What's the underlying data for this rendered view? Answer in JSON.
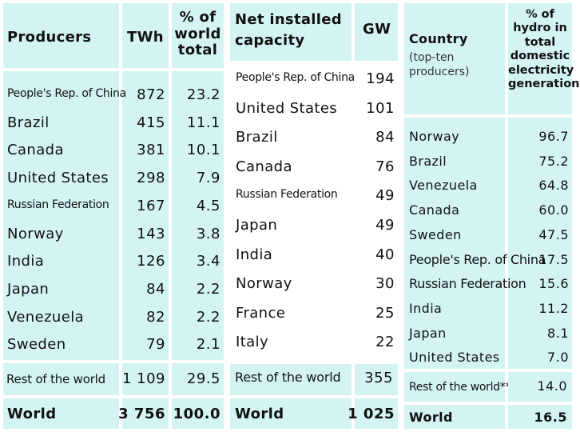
{
  "producers_table": {
    "headers": {
      "producers": "Producers",
      "twh": "TWh",
      "pct": "% of world total"
    },
    "rows": [
      {
        "name": "People's Rep. of China",
        "twh": "872",
        "pct": "23.2"
      },
      {
        "name": "Brazil",
        "twh": "415",
        "pct": "11.1"
      },
      {
        "name": "Canada",
        "twh": "381",
        "pct": "10.1"
      },
      {
        "name": "United States",
        "twh": "298",
        "pct": "7.9"
      },
      {
        "name": "Russian Federation",
        "twh": "167",
        "pct": "4.5"
      },
      {
        "name": "Norway",
        "twh": "143",
        "pct": "3.8"
      },
      {
        "name": "India",
        "twh": "126",
        "pct": "3.4"
      },
      {
        "name": "Japan",
        "twh": "84",
        "pct": "2.2"
      },
      {
        "name": "Venezuela",
        "twh": "82",
        "pct": "2.2"
      },
      {
        "name": "Sweden",
        "twh": "79",
        "pct": "2.1"
      }
    ],
    "rest": {
      "name": "Rest of the world",
      "twh": "1 109",
      "pct": "29.5"
    },
    "world": {
      "name": "World",
      "twh": "3 756",
      "pct": "100.0"
    }
  },
  "capacity_table": {
    "headers": {
      "capacity": "Net installed capacity",
      "gw": "GW"
    },
    "rows": [
      {
        "name": "People's Rep. of China",
        "gw": "194"
      },
      {
        "name": "United States",
        "gw": "101"
      },
      {
        "name": "Brazil",
        "gw": "84"
      },
      {
        "name": "Canada",
        "gw": "76"
      },
      {
        "name": "Russian Federation",
        "gw": "49"
      },
      {
        "name": "Japan",
        "gw": "49"
      },
      {
        "name": "India",
        "gw": "40"
      },
      {
        "name": "Norway",
        "gw": "30"
      },
      {
        "name": "France",
        "gw": "25"
      },
      {
        "name": "Italy",
        "gw": "22"
      }
    ],
    "rest": {
      "name": "Rest of the world",
      "gw": "355"
    },
    "world": {
      "name": "World",
      "gw": "1 025"
    }
  },
  "share_table": {
    "headers": {
      "country": "Country",
      "country_sub": "(top-ten producers)",
      "pct": "% of hydro in total domestic electricity generation"
    },
    "rows": [
      {
        "name": "Norway",
        "pct": "96.7"
      },
      {
        "name": "Brazil",
        "pct": "75.2"
      },
      {
        "name": "Venezuela",
        "pct": "64.8"
      },
      {
        "name": "Canada",
        "pct": "60.0"
      },
      {
        "name": "Sweden",
        "pct": "47.5"
      },
      {
        "name": "People's Rep. of China",
        "pct": "17.5"
      },
      {
        "name": "Russian Federation",
        "pct": "15.6"
      },
      {
        "name": "India",
        "pct": "11.2"
      },
      {
        "name": "Japan",
        "pct": "8.1"
      },
      {
        "name": "United States",
        "pct": "7.0"
      }
    ],
    "rest": {
      "name": "Rest of the world**",
      "pct": "14.0"
    },
    "world": {
      "name": "World",
      "pct": "16.5"
    }
  }
}
